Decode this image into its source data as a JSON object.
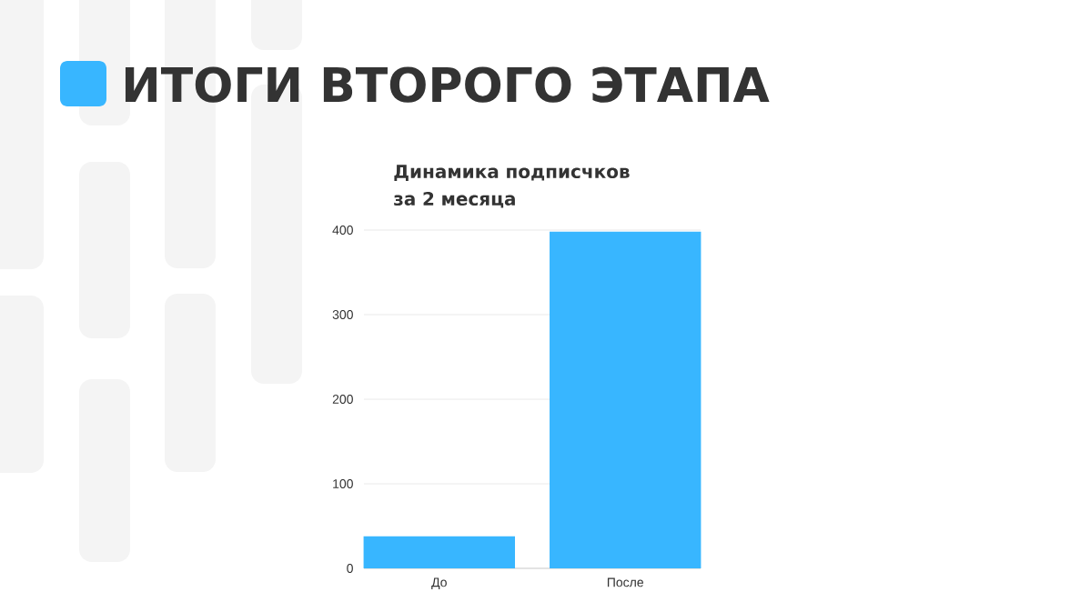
{
  "chart_data": {
    "type": "bar",
    "title": "ИТОГИ ВТОРОГО ЭТАПА",
    "subtitle": "Динамика подписчков за 2 месяца",
    "categories": [
      "До",
      "После"
    ],
    "values": [
      38,
      398
    ],
    "color": "#38b6ff",
    "ylim": [
      0,
      400
    ],
    "yticks": [
      0,
      100,
      200,
      300,
      400
    ],
    "grid": "y"
  }
}
